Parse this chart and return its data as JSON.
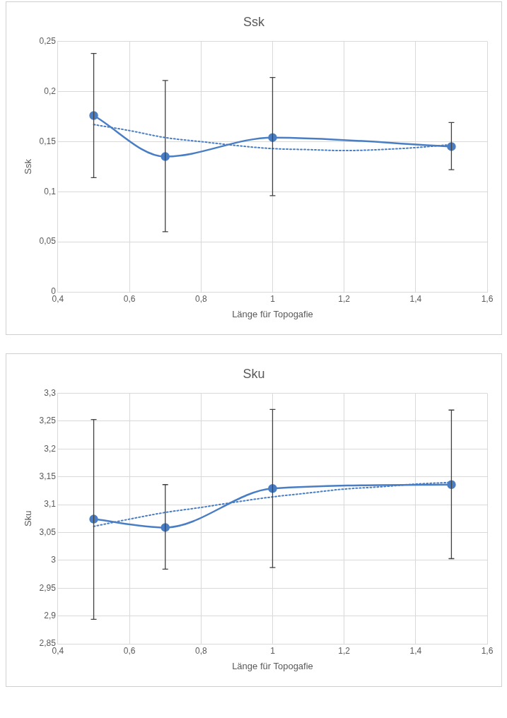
{
  "chart_data": [
    {
      "type": "line",
      "title": "Ssk",
      "xlabel": "Länge für Topogafie",
      "ylabel": "Ssk",
      "grid": true,
      "marker": "circle",
      "xlim": [
        0.4,
        1.6
      ],
      "ylim": [
        0,
        0.25
      ],
      "xticks": [
        {
          "value": 0.4,
          "label": "0,4"
        },
        {
          "value": 0.6,
          "label": "0,6"
        },
        {
          "value": 0.8,
          "label": "0,8"
        },
        1,
        {
          "value": 1.2,
          "label": "1,2"
        },
        {
          "value": 1.4,
          "label": "1,4"
        },
        {
          "value": 1.6,
          "label": "1,6"
        }
      ],
      "yticks": [
        0,
        {
          "value": 0.05,
          "label": "0,05"
        },
        {
          "value": 0.1,
          "label": "0,1"
        },
        {
          "value": 0.15,
          "label": "0,15"
        },
        {
          "value": 0.2,
          "label": "0,2"
        },
        {
          "value": 0.25,
          "label": "0,25"
        }
      ],
      "x": [
        0.5,
        0.7,
        1,
        1.5
      ],
      "series": [
        {
          "type": "line",
          "color": "#4a7ec4",
          "values": [
            0.176,
            0.135,
            0.154,
            0.145
          ],
          "errors": [
            [
              0.114,
              0.238
            ],
            [
              0.06,
              0.211
            ],
            [
              0.096,
              0.214
            ],
            [
              0.122,
              0.169
            ]
          ]
        },
        {
          "type": "line",
          "color": "#4a7ec4",
          "marker": "none",
          "line_style": "dotted",
          "x": [
            0.5,
            0.6,
            0.7,
            0.8,
            0.9,
            1,
            1.1,
            1.2,
            1.3,
            1.4,
            1.5
          ],
          "values": [
            0.167,
            0.161,
            0.154,
            0.15,
            0.146,
            0.143,
            0.142,
            0.141,
            0.142,
            0.144,
            0.147
          ]
        }
      ]
    },
    {
      "type": "line",
      "title": "Sku",
      "xlabel": "Länge für Topogafie",
      "ylabel": "Sku",
      "grid": true,
      "marker": "circle",
      "xlim": [
        0.4,
        1.6
      ],
      "ylim": [
        2.85,
        3.3
      ],
      "xticks": [
        {
          "value": 0.4,
          "label": "0,4"
        },
        {
          "value": 0.6,
          "label": "0,6"
        },
        {
          "value": 0.8,
          "label": "0,8"
        },
        1,
        {
          "value": 1.2,
          "label": "1,2"
        },
        {
          "value": 1.4,
          "label": "1,4"
        },
        {
          "value": 1.6,
          "label": "1,6"
        }
      ],
      "yticks": [
        {
          "value": 2.85,
          "label": "2,85"
        },
        {
          "value": 2.9,
          "label": "2,9"
        },
        {
          "value": 2.95,
          "label": "2,95"
        },
        3,
        {
          "value": 3.05,
          "label": "3,05"
        },
        {
          "value": 3.1,
          "label": "3,1"
        },
        {
          "value": 3.15,
          "label": "3,15"
        },
        {
          "value": 3.2,
          "label": "3,2"
        },
        {
          "value": 3.25,
          "label": "3,25"
        },
        {
          "value": 3.3,
          "label": "3,3"
        }
      ],
      "x": [
        0.5,
        0.7,
        1,
        1.5
      ],
      "series": [
        {
          "type": "line",
          "color": "#4a7ec4",
          "values": [
            3.074,
            3.059,
            3.129,
            3.136
          ],
          "errors": [
            [
              2.894,
              3.253
            ],
            [
              2.984,
              3.136
            ],
            [
              2.987,
              3.271
            ],
            [
              3.003,
              3.27
            ]
          ]
        },
        {
          "type": "line",
          "color": "#4a7ec4",
          "marker": "none",
          "line_style": "dotted",
          "x": [
            0.5,
            0.6,
            0.7,
            0.8,
            0.9,
            1,
            1.1,
            1.2,
            1.3,
            1.4,
            1.5
          ],
          "values": [
            3.061,
            3.074,
            3.086,
            3.095,
            3.105,
            3.114,
            3.121,
            3.128,
            3.132,
            3.137,
            3.14
          ]
        }
      ]
    }
  ]
}
